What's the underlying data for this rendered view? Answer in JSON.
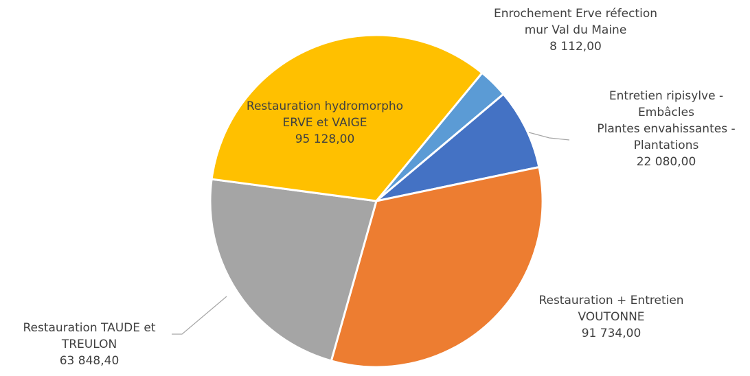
{
  "chart_data": {
    "type": "pie",
    "categories": [
      "Enrochement Erve réfection mur Val du Maine",
      "Entretien ripisylve - Embâcles\nPlantes envahissantes - Plantations",
      "Restauration + Entretien VOUTONNE",
      "Restauration TAUDE et TREULON",
      "Restauration hydromorpho ERVE et VAIGE"
    ],
    "values": [
      8112,
      22080,
      91734,
      63848.4,
      95128
    ],
    "value_labels": [
      "8 112,00",
      "22 080,00",
      "91 734,00",
      "63 848,40",
      "95 128,00"
    ],
    "colors": [
      "#5b9bd5",
      "#4472c4",
      "#ed7d31",
      "#a5a5a5",
      "#ffc000"
    ]
  }
}
